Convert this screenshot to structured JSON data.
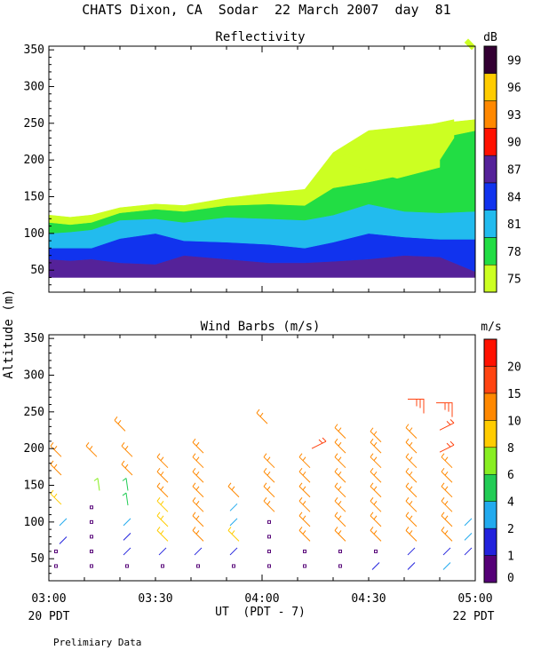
{
  "page": {
    "title": "CHATS Dixon, CA  Sodar  22 March 2007  day  81",
    "ylabel": "Altitude (m)",
    "xlabel": "UT  (PDT - 7)",
    "left_date": "20 PDT",
    "right_date": "22 PDT",
    "footer": "Prelimiary Data"
  },
  "chart_data": [
    {
      "type": "area",
      "title": "Reflectivity",
      "ylim": [
        20,
        355
      ],
      "yticks": [
        "50",
        "100",
        "150",
        "200",
        "250",
        "300",
        "350"
      ],
      "x_minutes": [
        0,
        60
      ],
      "legend_title": "dB",
      "legend_levels": [
        "75",
        "78",
        "81",
        "84",
        "87",
        "90",
        "93",
        "96",
        "99"
      ],
      "legend_colors": [
        "#ccff22",
        "#22dd44",
        "#22bbee",
        "#1133ee",
        "#552299",
        "#ff1100",
        "#ff8800",
        "#ffcc00",
        "#330033"
      ],
      "x": [
        0,
        3,
        6,
        10,
        15,
        19,
        25,
        31,
        36,
        40,
        45,
        50,
        55,
        60
      ],
      "bands": [
        {
          "level": "87",
          "color": "#552299",
          "bottom": [
            40,
            40,
            40,
            40,
            40,
            40,
            40,
            40,
            40,
            40,
            40,
            40,
            40,
            40
          ],
          "top": [
            65,
            63,
            65,
            60,
            58,
            70,
            65,
            60,
            60,
            62,
            65,
            70,
            68,
            48
          ]
        },
        {
          "level": "84",
          "color": "#1133ee",
          "bottom": [
            65,
            63,
            65,
            60,
            58,
            70,
            65,
            60,
            60,
            62,
            65,
            70,
            68,
            48
          ],
          "top": [
            80,
            80,
            80,
            93,
            100,
            90,
            88,
            85,
            80,
            88,
            100,
            95,
            92,
            92
          ]
        },
        {
          "level": "81",
          "color": "#22bbee",
          "bottom": [
            80,
            80,
            80,
            93,
            100,
            90,
            88,
            85,
            80,
            88,
            100,
            95,
            92,
            92
          ],
          "top": [
            100,
            102,
            105,
            118,
            120,
            115,
            122,
            120,
            118,
            125,
            140,
            130,
            128,
            130
          ]
        },
        {
          "level": "78",
          "color": "#22dd44",
          "bottom": [
            100,
            102,
            105,
            118,
            120,
            115,
            122,
            120,
            118,
            125,
            140,
            130,
            128,
            130
          ],
          "top": [
            115,
            112,
            115,
            128,
            133,
            130,
            138,
            140,
            138,
            162,
            170,
            180,
            230,
            240
          ]
        },
        {
          "level": "75",
          "color": "#ccff22",
          "bottom": [
            115,
            112,
            115,
            128,
            133,
            130,
            138,
            140,
            138,
            162,
            170,
            180,
            230,
            240
          ],
          "top": [
            125,
            122,
            125,
            135,
            140,
            138,
            148,
            155,
            160,
            210,
            240,
            245,
            250,
            255
          ]
        }
      ],
      "patches": [
        {
          "color": "#ccff22",
          "points": [
            [
              40,
              200
            ],
            [
              45,
              220
            ],
            [
              47.5,
              240
            ],
            [
              52,
              245
            ],
            [
              57,
              255
            ],
            [
              57,
              230
            ],
            [
              55,
              200
            ],
            [
              55,
              190
            ],
            [
              49,
              175
            ]
          ]
        },
        {
          "color": "#ccff22",
          "points": [
            [
              59,
              365
            ],
            [
              60,
              355
            ],
            [
              59.5,
              350
            ],
            [
              58.5,
              360
            ]
          ]
        }
      ]
    },
    {
      "type": "wind_barbs",
      "title": "Wind Barbs (m/s)",
      "ylim": [
        20,
        355
      ],
      "yticks": [
        "50",
        "100",
        "150",
        "200",
        "250",
        "300",
        "350"
      ],
      "xticks": [
        "03:00",
        "03:30",
        "04:00",
        "04:30",
        "05:00"
      ],
      "x_minutes": [
        0,
        60
      ],
      "legend_title": "m/s",
      "legend_levels": [
        "0",
        "1",
        "2",
        "4",
        "6",
        "8",
        "10",
        "15",
        "20"
      ],
      "legend_colors": [
        "#550077",
        "#2222dd",
        "#22aaee",
        "#22cc55",
        "#88ee22",
        "#ffcc00",
        "#ff8800",
        "#ff4411",
        "#ff1100"
      ],
      "barbs": [
        {
          "t": 1,
          "z": 40,
          "speed": 0
        },
        {
          "t": 1,
          "z": 60,
          "speed": 0
        },
        {
          "t": 2,
          "z": 75,
          "speed": 1
        },
        {
          "t": 2,
          "z": 100,
          "speed": 1.5
        },
        {
          "t": 1,
          "z": 130,
          "speed": 7
        },
        {
          "t": 1,
          "z": 170,
          "speed": 9
        },
        {
          "t": 1,
          "z": 195,
          "speed": 9
        },
        {
          "t": 6,
          "z": 40,
          "speed": 0
        },
        {
          "t": 6,
          "z": 60,
          "speed": 0
        },
        {
          "t": 6,
          "z": 80,
          "speed": 0
        },
        {
          "t": 6,
          "z": 100,
          "speed": 0
        },
        {
          "t": 6,
          "z": 120,
          "speed": 0
        },
        {
          "t": 7,
          "z": 150,
          "speed": 6
        },
        {
          "t": 6,
          "z": 195,
          "speed": 9
        },
        {
          "t": 11,
          "z": 40,
          "speed": 0
        },
        {
          "t": 11,
          "z": 60,
          "speed": 1
        },
        {
          "t": 11,
          "z": 80,
          "speed": 1
        },
        {
          "t": 11,
          "z": 100,
          "speed": 2
        },
        {
          "t": 11,
          "z": 130,
          "speed": 3
        },
        {
          "t": 11,
          "z": 150,
          "speed": 4
        },
        {
          "t": 11,
          "z": 170,
          "speed": 9
        },
        {
          "t": 11,
          "z": 195,
          "speed": 9
        },
        {
          "t": 10,
          "z": 230,
          "speed": 10
        },
        {
          "t": 16,
          "z": 40,
          "speed": 0
        },
        {
          "t": 16,
          "z": 60,
          "speed": 1
        },
        {
          "t": 16,
          "z": 80,
          "speed": 8
        },
        {
          "t": 16,
          "z": 100,
          "speed": 8
        },
        {
          "t": 16,
          "z": 120,
          "speed": 8
        },
        {
          "t": 16,
          "z": 140,
          "speed": 9
        },
        {
          "t": 16,
          "z": 160,
          "speed": 9
        },
        {
          "t": 16,
          "z": 180,
          "speed": 9
        },
        {
          "t": 21,
          "z": 40,
          "speed": 0
        },
        {
          "t": 21,
          "z": 60,
          "speed": 1
        },
        {
          "t": 21,
          "z": 80,
          "speed": 9
        },
        {
          "t": 21,
          "z": 100,
          "speed": 9
        },
        {
          "t": 21,
          "z": 120,
          "speed": 9
        },
        {
          "t": 21,
          "z": 140,
          "speed": 9
        },
        {
          "t": 21,
          "z": 160,
          "speed": 9
        },
        {
          "t": 21,
          "z": 180,
          "speed": 9
        },
        {
          "t": 21,
          "z": 200,
          "speed": 9
        },
        {
          "t": 26,
          "z": 40,
          "speed": 0
        },
        {
          "t": 26,
          "z": 60,
          "speed": 1
        },
        {
          "t": 26,
          "z": 80,
          "speed": 8
        },
        {
          "t": 26,
          "z": 100,
          "speed": 2
        },
        {
          "t": 26,
          "z": 120,
          "speed": 2
        },
        {
          "t": 26,
          "z": 140,
          "speed": 9
        },
        {
          "t": 31,
          "z": 40,
          "speed": 0
        },
        {
          "t": 31,
          "z": 60,
          "speed": 0
        },
        {
          "t": 31,
          "z": 80,
          "speed": 0
        },
        {
          "t": 31,
          "z": 100,
          "speed": 0
        },
        {
          "t": 31,
          "z": 120,
          "speed": 9
        },
        {
          "t": 31,
          "z": 140,
          "speed": 9
        },
        {
          "t": 31,
          "z": 160,
          "speed": 9
        },
        {
          "t": 31,
          "z": 180,
          "speed": 9
        },
        {
          "t": 30,
          "z": 240,
          "speed": 10
        },
        {
          "t": 36,
          "z": 40,
          "speed": 0
        },
        {
          "t": 36,
          "z": 60,
          "speed": 0
        },
        {
          "t": 36,
          "z": 80,
          "speed": 9
        },
        {
          "t": 36,
          "z": 100,
          "speed": 9
        },
        {
          "t": 36,
          "z": 120,
          "speed": 9
        },
        {
          "t": 36,
          "z": 140,
          "speed": 9
        },
        {
          "t": 36,
          "z": 160,
          "speed": 9
        },
        {
          "t": 36,
          "z": 180,
          "speed": 9
        },
        {
          "t": 38,
          "z": 205,
          "speed": 15
        },
        {
          "t": 41,
          "z": 40,
          "speed": 0
        },
        {
          "t": 41,
          "z": 60,
          "speed": 0
        },
        {
          "t": 41,
          "z": 80,
          "speed": 9
        },
        {
          "t": 41,
          "z": 100,
          "speed": 9
        },
        {
          "t": 41,
          "z": 120,
          "speed": 9
        },
        {
          "t": 41,
          "z": 140,
          "speed": 9
        },
        {
          "t": 41,
          "z": 160,
          "speed": 9
        },
        {
          "t": 41,
          "z": 180,
          "speed": 9
        },
        {
          "t": 41,
          "z": 200,
          "speed": 10
        },
        {
          "t": 41,
          "z": 220,
          "speed": 10
        },
        {
          "t": 46,
          "z": 40,
          "speed": 1
        },
        {
          "t": 46,
          "z": 60,
          "speed": 0
        },
        {
          "t": 46,
          "z": 80,
          "speed": 9
        },
        {
          "t": 46,
          "z": 100,
          "speed": 9
        },
        {
          "t": 46,
          "z": 120,
          "speed": 9
        },
        {
          "t": 46,
          "z": 140,
          "speed": 9
        },
        {
          "t": 46,
          "z": 160,
          "speed": 9
        },
        {
          "t": 46,
          "z": 180,
          "speed": 9
        },
        {
          "t": 46,
          "z": 200,
          "speed": 10
        },
        {
          "t": 46,
          "z": 215,
          "speed": 10
        },
        {
          "t": 51,
          "z": 40,
          "speed": 1
        },
        {
          "t": 51,
          "z": 60,
          "speed": 1
        },
        {
          "t": 51,
          "z": 80,
          "speed": 9
        },
        {
          "t": 51,
          "z": 100,
          "speed": 9
        },
        {
          "t": 51,
          "z": 120,
          "speed": 9
        },
        {
          "t": 51,
          "z": 140,
          "speed": 9
        },
        {
          "t": 51,
          "z": 160,
          "speed": 9
        },
        {
          "t": 51,
          "z": 180,
          "speed": 9
        },
        {
          "t": 51,
          "z": 200,
          "speed": 10
        },
        {
          "t": 51,
          "z": 220,
          "speed": 10
        },
        {
          "t": 52,
          "z": 260,
          "speed": 15
        },
        {
          "t": 56,
          "z": 40,
          "speed": 2
        },
        {
          "t": 56,
          "z": 60,
          "speed": 1
        },
        {
          "t": 56,
          "z": 80,
          "speed": 9
        },
        {
          "t": 56,
          "z": 100,
          "speed": 9
        },
        {
          "t": 56,
          "z": 120,
          "speed": 9
        },
        {
          "t": 56,
          "z": 140,
          "speed": 9
        },
        {
          "t": 56,
          "z": 160,
          "speed": 9
        },
        {
          "t": 56,
          "z": 180,
          "speed": 9
        },
        {
          "t": 56,
          "z": 200,
          "speed": 15
        },
        {
          "t": 56,
          "z": 230,
          "speed": 15
        },
        {
          "t": 56,
          "z": 255,
          "speed": 15
        },
        {
          "t": 59,
          "z": 60,
          "speed": 1
        },
        {
          "t": 59,
          "z": 80,
          "speed": 2
        },
        {
          "t": 59,
          "z": 100,
          "speed": 2
        }
      ]
    }
  ]
}
